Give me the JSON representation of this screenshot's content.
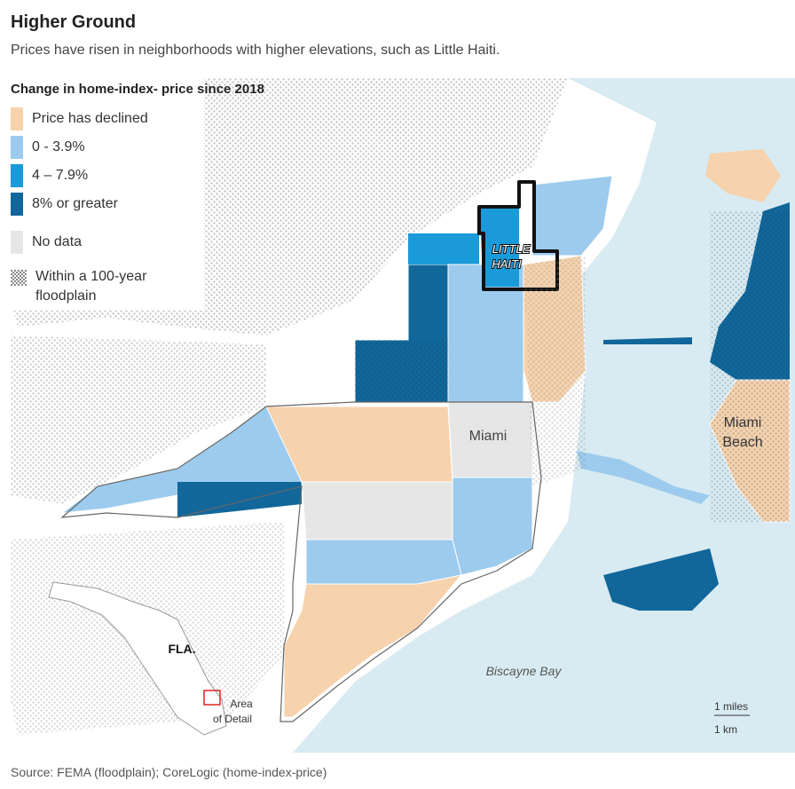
{
  "title": "Higher Ground",
  "subtitle": "Prices have risen in neighborhoods with higher elevations, such as Little Haiti.",
  "legend": {
    "title": "Change in home-index- price since 2018",
    "items": [
      {
        "label": "Price has declined",
        "color": "#f6d2ad"
      },
      {
        "label": "0 - 3.9%",
        "color": "#9ccbed"
      },
      {
        "label": "4 – 7.9%",
        "color": "#1a9ad9"
      },
      {
        "label": "8% or greater",
        "color": "#11679a"
      },
      {
        "label": "No data",
        "color": "#e6e6e6"
      }
    ],
    "floodplain_label_1": "Within a 100-year",
    "floodplain_label_2": "floodplain"
  },
  "map": {
    "water_color": "#d9ebf2",
    "land_color": "#ffffff",
    "labels": {
      "little_haiti_1": "LITTLE",
      "little_haiti_2": "HAITI",
      "miami": "Miami",
      "miami_beach_1": "Miami",
      "miami_beach_2": "Beach",
      "biscayne_bay": "Biscayne Bay",
      "fla": "FLA.",
      "area_1": "Area",
      "area_2": "of Detail"
    },
    "scale": {
      "miles": "1 miles",
      "km": "1 km"
    }
  },
  "source": "Source: FEMA (floodplain); CoreLogic (home-index-price)"
}
